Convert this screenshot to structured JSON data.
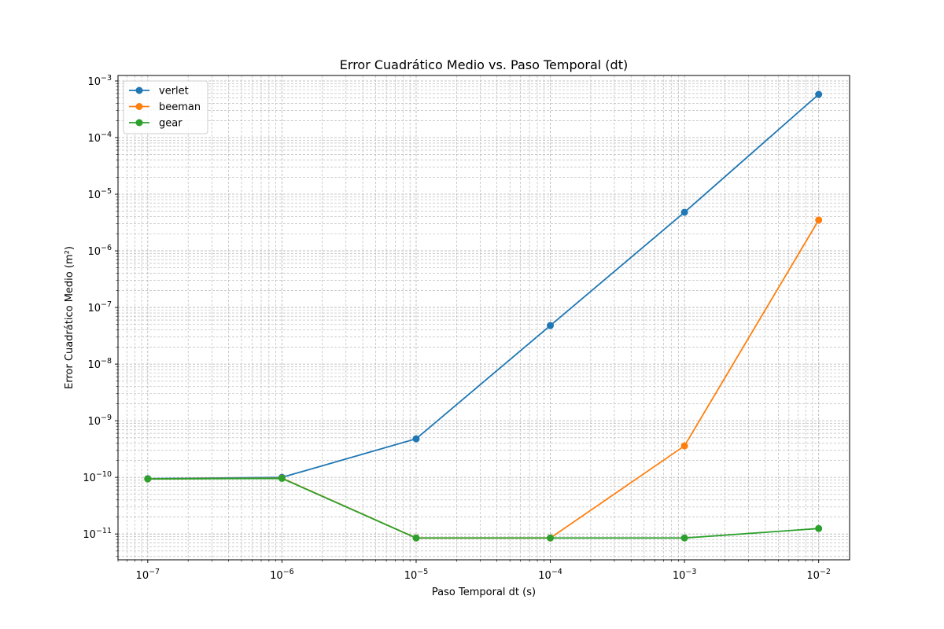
{
  "chart_data": {
    "type": "line",
    "title": "Error Cuadrático Medio vs. Paso Temporal (dt)",
    "xlabel": "Paso Temporal dt (s)",
    "ylabel": "Error Cuadrático Medio (m²)",
    "xscale": "log",
    "yscale": "log",
    "xlim": [
      6e-08,
      0.017
    ],
    "ylim": [
      3.5e-12,
      0.00125
    ],
    "grid": true,
    "grid_style": "dashed, major and minor",
    "legend_position": "top-left",
    "x": [
      1e-07,
      1e-06,
      1e-05,
      0.0001,
      0.001,
      0.01
    ],
    "x_ticks": [
      {
        "value": 1e-07,
        "base": "10",
        "exp": "−7"
      },
      {
        "value": 1e-06,
        "base": "10",
        "exp": "−6"
      },
      {
        "value": 1e-05,
        "base": "10",
        "exp": "−5"
      },
      {
        "value": 0.0001,
        "base": "10",
        "exp": "−4"
      },
      {
        "value": 0.001,
        "base": "10",
        "exp": "−3"
      },
      {
        "value": 0.01,
        "base": "10",
        "exp": "−2"
      }
    ],
    "y_ticks": [
      {
        "value": 1e-11,
        "base": "10",
        "exp": "−11"
      },
      {
        "value": 1e-10,
        "base": "10",
        "exp": "−10"
      },
      {
        "value": 1e-09,
        "base": "10",
        "exp": "−9"
      },
      {
        "value": 1e-08,
        "base": "10",
        "exp": "−8"
      },
      {
        "value": 1e-07,
        "base": "10",
        "exp": "−7"
      },
      {
        "value": 1e-06,
        "base": "10",
        "exp": "−6"
      },
      {
        "value": 1e-05,
        "base": "10",
        "exp": "−5"
      },
      {
        "value": 0.0001,
        "base": "10",
        "exp": "−4"
      },
      {
        "value": 0.001,
        "base": "10",
        "exp": "−3"
      }
    ],
    "series": [
      {
        "name": "verlet",
        "color": "#1f77b4",
        "values": [
          9.5e-11,
          1e-10,
          4.8e-10,
          4.8e-08,
          4.8e-06,
          0.00058
        ]
      },
      {
        "name": "beeman",
        "color": "#ff7f0e",
        "values": [
          9.4e-11,
          9.7e-11,
          8.5e-12,
          8.5e-12,
          3.6e-10,
          3.5e-06
        ]
      },
      {
        "name": "gear",
        "color": "#2ca02c",
        "values": [
          9.4e-11,
          9.6e-11,
          8.5e-12,
          8.5e-12,
          8.5e-12,
          1.25e-11
        ]
      }
    ]
  }
}
